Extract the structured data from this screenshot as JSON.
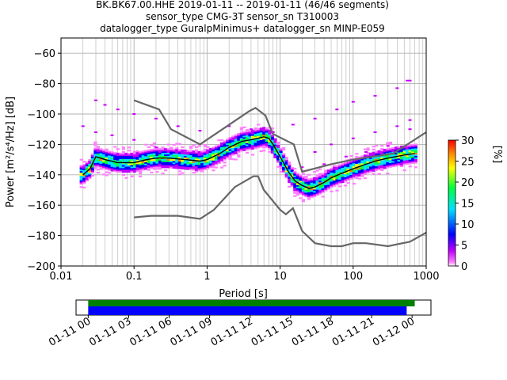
{
  "title_lines": [
    "BK.BK67.00.HHE   2019-01-11 -- 2019-01-11  (46/46 segments)",
    "sensor_type CMG-3T sensor_sn T310003",
    "datalogger_type GuralpMinimus+ datalogger_sn MINP-E059"
  ],
  "chart_data": {
    "type": "heatmap",
    "xlabel": "Period [s]",
    "ylabel": "Power [m²/s⁴/Hz] [dB]",
    "x_scale": "log",
    "xlim": [
      0.01,
      1000
    ],
    "ylim": [
      -200,
      -50
    ],
    "x_ticks": [
      {
        "v": 0.01,
        "label": "0.01"
      },
      {
        "v": 0.1,
        "label": "0.1"
      },
      {
        "v": 1,
        "label": "1"
      },
      {
        "v": 10,
        "label": "10"
      },
      {
        "v": 100,
        "label": "100"
      },
      {
        "v": 1000,
        "label": "1000"
      }
    ],
    "y_ticks": [
      {
        "v": -60,
        "label": "−60"
      },
      {
        "v": -80,
        "label": "−80"
      },
      {
        "v": -100,
        "label": "−100"
      },
      {
        "v": -120,
        "label": "−120"
      },
      {
        "v": -140,
        "label": "−140"
      },
      {
        "v": -160,
        "label": "−160"
      },
      {
        "v": -180,
        "label": "−180"
      },
      {
        "v": -200,
        "label": "−200"
      }
    ],
    "grid": true,
    "mode_curve": [
      [
        0.02,
        -140
      ],
      [
        0.025,
        -136
      ],
      [
        0.03,
        -128
      ],
      [
        0.04,
        -130
      ],
      [
        0.06,
        -132
      ],
      [
        0.1,
        -132
      ],
      [
        0.15,
        -130
      ],
      [
        0.2,
        -129
      ],
      [
        0.3,
        -129
      ],
      [
        0.5,
        -130
      ],
      [
        0.8,
        -131
      ],
      [
        1.0,
        -130
      ],
      [
        1.5,
        -126
      ],
      [
        2.0,
        -122
      ],
      [
        3.0,
        -118
      ],
      [
        4.0,
        -117
      ],
      [
        5.0,
        -116
      ],
      [
        6.0,
        -115
      ],
      [
        7.0,
        -116
      ],
      [
        8.0,
        -120
      ],
      [
        10,
        -128
      ],
      [
        13,
        -138
      ],
      [
        16,
        -144
      ],
      [
        20,
        -147
      ],
      [
        25,
        -149
      ],
      [
        30,
        -148
      ],
      [
        40,
        -145
      ],
      [
        50,
        -142
      ],
      [
        70,
        -139
      ],
      [
        100,
        -136
      ],
      [
        150,
        -133
      ],
      [
        200,
        -131
      ],
      [
        300,
        -129
      ],
      [
        500,
        -127
      ],
      [
        700,
        -126
      ]
    ],
    "nlnm": [
      [
        0.1,
        -168
      ],
      [
        0.17,
        -167
      ],
      [
        0.4,
        -167
      ],
      [
        0.8,
        -169
      ],
      [
        1.24,
        -163
      ],
      [
        2.4,
        -148
      ],
      [
        4.3,
        -141
      ],
      [
        5.0,
        -141
      ],
      [
        6.0,
        -150
      ],
      [
        10,
        -163
      ],
      [
        12,
        -166
      ],
      [
        15,
        -162
      ],
      [
        20,
        -177
      ],
      [
        30,
        -185
      ],
      [
        50,
        -187
      ],
      [
        70,
        -187
      ],
      [
        100,
        -185
      ],
      [
        150,
        -185
      ],
      [
        300,
        -187
      ],
      [
        600,
        -184
      ],
      [
        1000,
        -178
      ]
    ],
    "nhnm": [
      [
        0.1,
        -91
      ],
      [
        0.22,
        -97
      ],
      [
        0.32,
        -110
      ],
      [
        0.8,
        -120
      ],
      [
        3.8,
        -98
      ],
      [
        4.6,
        -96
      ],
      [
        6.3,
        -101
      ],
      [
        7.9,
        -113
      ],
      [
        15.4,
        -120
      ],
      [
        20,
        -138
      ],
      [
        50,
        -133
      ],
      [
        100,
        -130
      ],
      [
        354,
        -126
      ],
      [
        1000,
        -112
      ]
    ],
    "colorbar": {
      "label": "[%]",
      "min": 0,
      "max": 30,
      "ticks": [
        {
          "v": 0,
          "label": "0"
        },
        {
          "v": 5,
          "label": "5"
        },
        {
          "v": 10,
          "label": "10"
        },
        {
          "v": 15,
          "label": "15"
        },
        {
          "v": 20,
          "label": "20"
        },
        {
          "v": 25,
          "label": "25"
        },
        {
          "v": 30,
          "label": "30"
        }
      ],
      "colors": [
        "#ffffff",
        "#ff00ff",
        "#0000ff",
        "#00ffff",
        "#00ff00",
        "#ffff00",
        "#ff8000",
        "#ff0000"
      ]
    },
    "coverage": {
      "time_ticks": [
        "01-11 00",
        "01-11 03",
        "01-11 06",
        "01-11 09",
        "01-11 12",
        "01-11 15",
        "01-11 18",
        "01-11 21",
        "01-12 00"
      ],
      "time_range_hours": [
        -0.9,
        25.4
      ],
      "data_bar_hours": [
        0,
        24.2
      ],
      "psd_bar_hours": [
        0,
        23.6
      ],
      "data_color": "#008000",
      "psd_color": "#0000ff"
    }
  }
}
